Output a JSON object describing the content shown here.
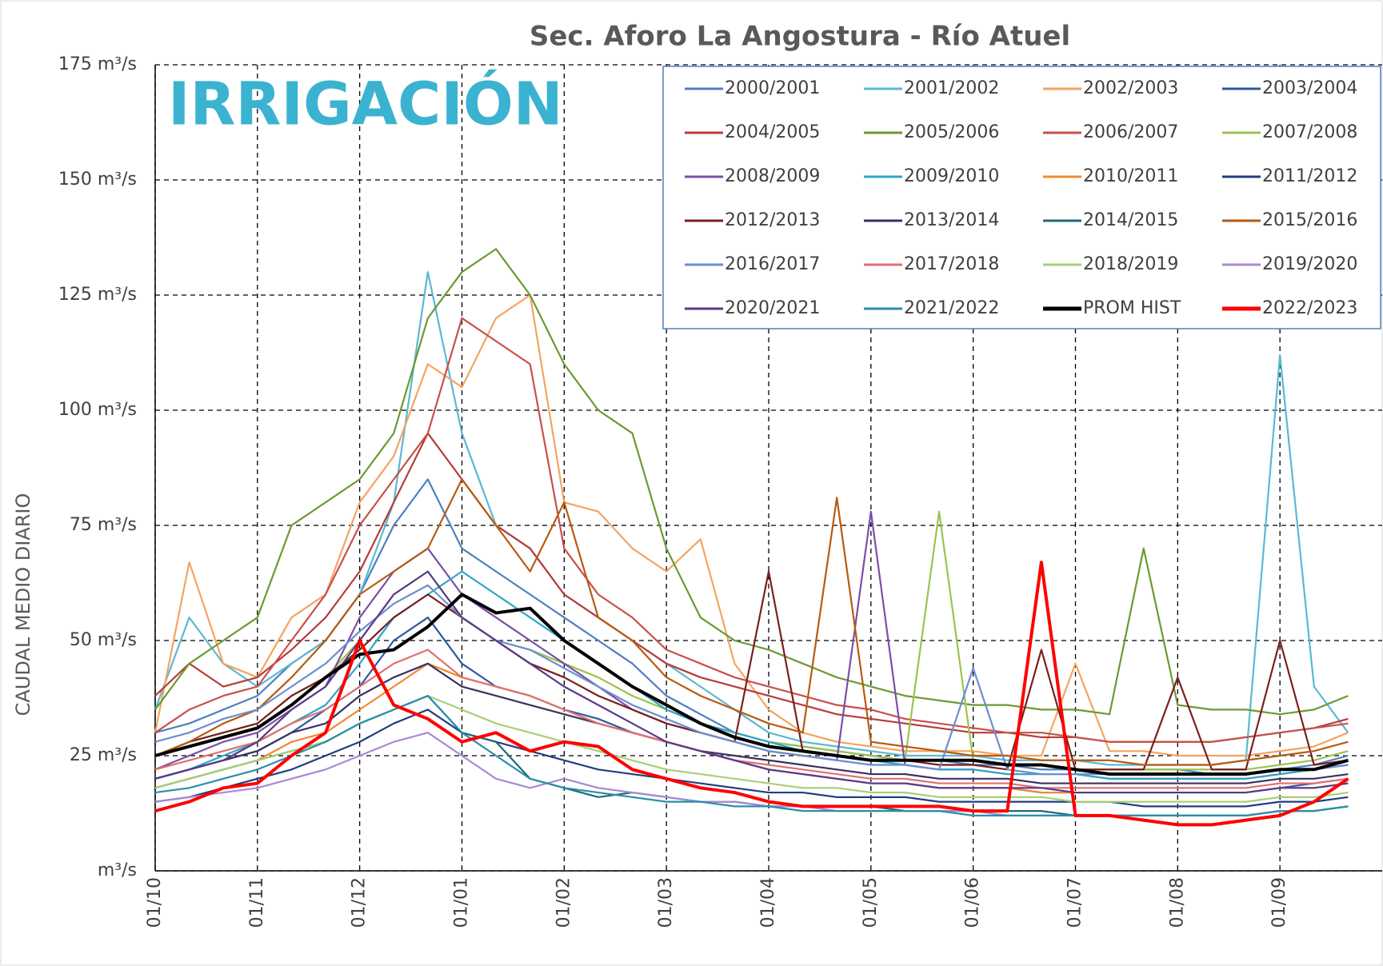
{
  "chart_data": {
    "type": "line",
    "title": "Sec. Aforo La Angostura - Río Atuel",
    "y_label": "CAUDAL  MEDIO  DIARIO",
    "logo": "IRRIGACIÓN",
    "categories": [
      "01/10",
      null,
      null,
      "01/11",
      null,
      null,
      "01/12",
      null,
      null,
      "01/01",
      null,
      null,
      "01/02",
      null,
      null,
      "01/03",
      null,
      null,
      "01/04",
      null,
      null,
      "01/05",
      null,
      null,
      "01/06",
      null,
      null,
      "01/07",
      null,
      null,
      "01/08",
      null,
      null,
      "01/09",
      null,
      null
    ],
    "ylim": [
      0,
      175
    ],
    "yticks": [
      {
        "value": 0,
        "label": "m³/s"
      },
      {
        "value": 25,
        "label": "25 m³/s"
      },
      {
        "value": 50,
        "label": "50 m³/s"
      },
      {
        "value": 75,
        "label": "75 m³/s"
      },
      {
        "value": 100,
        "label": "100 m³/s"
      },
      {
        "value": 125,
        "label": "125 m³/s"
      },
      {
        "value": 150,
        "label": "150 m³/s"
      },
      {
        "value": 175,
        "label": "175 m³/s"
      }
    ],
    "grid": true,
    "legend": "upper right",
    "series": [
      {
        "name": "2000/2001",
        "color": "#4f7fc0",
        "values": [
          30,
          32,
          35,
          38,
          45,
          50,
          60,
          75,
          85,
          70,
          65,
          60,
          55,
          50,
          45,
          38,
          34,
          30,
          28,
          27,
          26,
          25,
          24,
          24,
          23,
          23,
          22,
          22,
          22,
          22,
          22,
          21,
          21,
          22,
          23,
          25
        ]
      },
      {
        "name": "2001/2002",
        "color": "#5bb8d4",
        "values": [
          35,
          55,
          45,
          40,
          45,
          50,
          60,
          80,
          130,
          95,
          75,
          70,
          60,
          55,
          50,
          45,
          40,
          35,
          30,
          28,
          27,
          26,
          25,
          25,
          25,
          24,
          24,
          24,
          23,
          23,
          23,
          23,
          24,
          112,
          40,
          30
        ]
      },
      {
        "name": "2002/2003",
        "color": "#f4a460",
        "values": [
          30,
          67,
          45,
          42,
          55,
          60,
          80,
          90,
          110,
          105,
          120,
          125,
          80,
          78,
          70,
          65,
          72,
          45,
          35,
          30,
          28,
          27,
          26,
          26,
          26,
          25,
          25,
          45,
          26,
          26,
          25,
          25,
          25,
          26,
          27,
          30
        ]
      },
      {
        "name": "2003/2004",
        "color": "#2e5aa0",
        "values": [
          20,
          22,
          24,
          26,
          30,
          35,
          40,
          50,
          55,
          45,
          40,
          38,
          35,
          33,
          30,
          28,
          26,
          24,
          22,
          21,
          20,
          19,
          19,
          18,
          18,
          18,
          17,
          17,
          17,
          17,
          17,
          17,
          17,
          18,
          19,
          20
        ]
      },
      {
        "name": "2004/2005",
        "color": "#b83b3b",
        "values": [
          38,
          45,
          40,
          42,
          48,
          55,
          65,
          80,
          95,
          85,
          75,
          70,
          60,
          55,
          50,
          45,
          42,
          40,
          38,
          36,
          34,
          33,
          32,
          31,
          30,
          30,
          29,
          29,
          28,
          28,
          28,
          28,
          29,
          30,
          31,
          33
        ]
      },
      {
        "name": "2005/2006",
        "color": "#6b9a30",
        "values": [
          35,
          45,
          50,
          55,
          75,
          80,
          85,
          95,
          120,
          130,
          135,
          125,
          110,
          100,
          95,
          70,
          55,
          50,
          48,
          45,
          42,
          40,
          38,
          37,
          36,
          36,
          35,
          35,
          34,
          70,
          36,
          35,
          35,
          34,
          35,
          38
        ]
      },
      {
        "name": "2006/2007",
        "color": "#c8504a",
        "values": [
          30,
          35,
          38,
          40,
          50,
          60,
          75,
          85,
          95,
          120,
          115,
          110,
          70,
          60,
          55,
          48,
          45,
          42,
          40,
          38,
          36,
          35,
          33,
          32,
          31,
          30,
          30,
          29,
          28,
          28,
          28,
          28,
          29,
          30,
          31,
          32
        ]
      },
      {
        "name": "2007/2008",
        "color": "#9bc34f",
        "values": [
          25,
          28,
          30,
          32,
          38,
          42,
          50,
          60,
          65,
          55,
          50,
          48,
          45,
          42,
          38,
          35,
          32,
          30,
          28,
          27,
          26,
          25,
          24,
          78,
          24,
          23,
          23,
          22,
          22,
          22,
          22,
          22,
          22,
          23,
          24,
          26
        ]
      },
      {
        "name": "2008/2009",
        "color": "#7b4ea8",
        "values": [
          22,
          25,
          28,
          30,
          35,
          40,
          55,
          65,
          70,
          60,
          55,
          50,
          45,
          40,
          35,
          32,
          30,
          28,
          26,
          25,
          24,
          78,
          23,
          22,
          22,
          21,
          21,
          21,
          20,
          20,
          20,
          20,
          20,
          21,
          22,
          23
        ]
      },
      {
        "name": "2009/2010",
        "color": "#2ea6c8",
        "values": [
          20,
          22,
          25,
          28,
          32,
          36,
          45,
          55,
          60,
          65,
          60,
          55,
          50,
          45,
          40,
          35,
          32,
          30,
          28,
          26,
          25,
          24,
          23,
          22,
          22,
          21,
          21,
          21,
          20,
          20,
          20,
          20,
          20,
          21,
          22,
          24
        ]
      },
      {
        "name": "2010/2011",
        "color": "#f08a30",
        "values": [
          18,
          20,
          22,
          24,
          28,
          30,
          35,
          40,
          45,
          42,
          40,
          38,
          35,
          32,
          30,
          28,
          26,
          24,
          22,
          21,
          20,
          19,
          19,
          18,
          18,
          18,
          17,
          17,
          17,
          17,
          17,
          17,
          17,
          18,
          18,
          19
        ]
      },
      {
        "name": "2011/2012",
        "color": "#1f3f80",
        "values": [
          15,
          16,
          18,
          20,
          22,
          25,
          28,
          32,
          35,
          30,
          28,
          26,
          24,
          22,
          21,
          20,
          19,
          18,
          17,
          17,
          16,
          16,
          16,
          15,
          15,
          15,
          15,
          15,
          15,
          14,
          14,
          14,
          14,
          15,
          15,
          16
        ]
      },
      {
        "name": "2012/2013",
        "color": "#7a1f1f",
        "values": [
          25,
          28,
          30,
          32,
          38,
          42,
          48,
          55,
          60,
          55,
          50,
          45,
          42,
          38,
          35,
          32,
          30,
          28,
          65,
          26,
          25,
          24,
          24,
          23,
          23,
          22,
          48,
          22,
          22,
          22,
          42,
          22,
          22,
          50,
          23,
          24
        ]
      },
      {
        "name": "2013/2014",
        "color": "#3a3060",
        "values": [
          20,
          22,
          24,
          26,
          30,
          32,
          38,
          42,
          45,
          40,
          38,
          36,
          34,
          32,
          30,
          28,
          26,
          25,
          24,
          23,
          22,
          21,
          21,
          20,
          20,
          20,
          19,
          19,
          19,
          19,
          19,
          19,
          19,
          20,
          20,
          21
        ]
      },
      {
        "name": "2014/2015",
        "color": "#1f6a7a",
        "values": [
          18,
          20,
          22,
          24,
          26,
          28,
          32,
          35,
          38,
          30,
          28,
          20,
          18,
          16,
          17,
          16,
          15,
          15,
          14,
          14,
          14,
          14,
          13,
          13,
          13,
          13,
          13,
          12,
          12,
          12,
          12,
          12,
          12,
          13,
          13,
          14
        ]
      },
      {
        "name": "2015/2016",
        "color": "#b85a10",
        "values": [
          25,
          28,
          32,
          35,
          42,
          50,
          60,
          65,
          70,
          85,
          75,
          65,
          80,
          55,
          50,
          42,
          38,
          35,
          32,
          30,
          81,
          28,
          27,
          26,
          25,
          25,
          24,
          24,
          24,
          23,
          23,
          23,
          24,
          25,
          26,
          28
        ]
      },
      {
        "name": "2016/2017",
        "color": "#6a8fd0",
        "values": [
          28,
          30,
          33,
          35,
          40,
          45,
          52,
          58,
          62,
          55,
          50,
          48,
          44,
          40,
          36,
          33,
          30,
          28,
          26,
          25,
          24,
          23,
          23,
          22,
          44,
          22,
          21,
          21,
          21,
          21,
          21,
          21,
          21,
          22,
          22,
          23
        ]
      },
      {
        "name": "2017/2018",
        "color": "#e07070",
        "values": [
          22,
          24,
          26,
          28,
          32,
          35,
          40,
          45,
          48,
          42,
          40,
          38,
          35,
          32,
          30,
          28,
          26,
          24,
          23,
          22,
          21,
          20,
          20,
          19,
          19,
          19,
          18,
          18,
          18,
          18,
          18,
          18,
          18,
          19,
          19,
          20
        ]
      },
      {
        "name": "2018/2019",
        "color": "#a8cf78",
        "values": [
          18,
          20,
          22,
          24,
          26,
          28,
          32,
          35,
          38,
          35,
          32,
          30,
          28,
          26,
          24,
          22,
          21,
          20,
          19,
          18,
          18,
          17,
          17,
          16,
          16,
          16,
          16,
          15,
          15,
          15,
          15,
          15,
          15,
          16,
          16,
          17
        ]
      },
      {
        "name": "2019/2020",
        "color": "#a88ad0",
        "values": [
          15,
          16,
          17,
          18,
          20,
          22,
          25,
          28,
          30,
          25,
          20,
          18,
          20,
          18,
          17,
          16,
          15,
          15,
          14,
          14,
          13,
          13,
          13,
          13,
          13,
          12,
          12,
          12,
          12,
          12,
          12,
          12,
          12,
          13,
          13,
          14
        ]
      },
      {
        "name": "2020/2021",
        "color": "#5a3a8a",
        "values": [
          20,
          22,
          24,
          28,
          35,
          40,
          50,
          60,
          65,
          55,
          50,
          45,
          40,
          36,
          32,
          28,
          26,
          24,
          22,
          21,
          20,
          19,
          19,
          18,
          18,
          18,
          18,
          17,
          17,
          17,
          17,
          17,
          17,
          18,
          18,
          19
        ]
      },
      {
        "name": "2021/2022",
        "color": "#2a8fa8",
        "values": [
          17,
          18,
          20,
          22,
          25,
          28,
          32,
          35,
          38,
          30,
          25,
          20,
          18,
          17,
          16,
          15,
          15,
          14,
          14,
          13,
          13,
          13,
          13,
          13,
          12,
          12,
          12,
          12,
          12,
          12,
          12,
          12,
          12,
          13,
          13,
          14
        ]
      },
      {
        "name": "PROM HIST",
        "color": "#000000",
        "width": 4,
        "values": [
          25,
          27,
          29,
          31,
          36,
          42,
          47,
          48,
          53,
          60,
          56,
          57,
          50,
          45,
          40,
          36,
          32,
          29,
          27,
          26,
          25,
          24,
          24,
          24,
          24,
          23,
          23,
          22,
          21,
          21,
          21,
          21,
          21,
          22,
          22,
          24
        ]
      },
      {
        "name": "2022/2023",
        "color": "#ff0000",
        "width": 4,
        "values": [
          13,
          15,
          18,
          19,
          25,
          30,
          50,
          36,
          33,
          28,
          30,
          26,
          28,
          27,
          22,
          20,
          18,
          17,
          15,
          14,
          14,
          14,
          14,
          14,
          13,
          13,
          67,
          12,
          12,
          11,
          10,
          10,
          11,
          12,
          15,
          20
        ]
      }
    ]
  }
}
